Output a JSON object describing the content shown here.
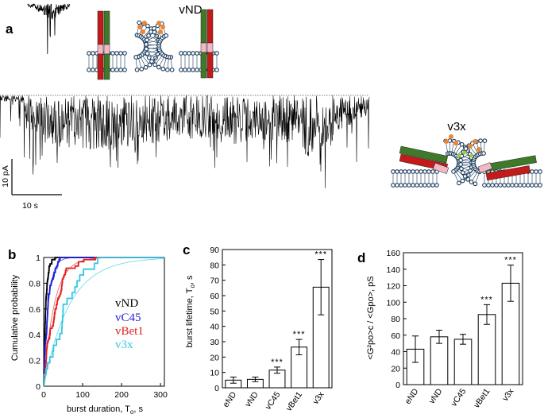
{
  "panels": {
    "a": {
      "label": "a",
      "construct_top": "vND",
      "construct_right": "v3x",
      "scale_current": "10 pA",
      "scale_time": "10 s"
    },
    "b": {
      "label": "b",
      "legend": [
        {
          "name": "vND",
          "color": "#000000"
        },
        {
          "name": "vC45",
          "color": "#1f1fd8"
        },
        {
          "name": "vBet1",
          "color": "#e02020"
        },
        {
          "name": "v3x",
          "color": "#33c8e0"
        }
      ]
    },
    "c": {
      "label": "c"
    },
    "d": {
      "label": "d"
    }
  },
  "chart_data": [
    {
      "id": "b",
      "type": "line",
      "title": "",
      "xlabel": "burst duration, T",
      "xlabel_sub": "o",
      "xlabel_suffix": ", s",
      "ylabel": "Cumulative probability",
      "xlim": [
        0,
        310
      ],
      "ylim": [
        0,
        1
      ],
      "xticks": [
        0,
        100,
        200,
        300
      ],
      "yticks": [
        0,
        0.2,
        0.4,
        0.6,
        0.8,
        1
      ],
      "series": [
        {
          "name": "vND",
          "color": "#000000",
          "tau": 6,
          "max_x": 70
        },
        {
          "name": "vC45",
          "color": "#1f1fd8",
          "tau": 12,
          "max_x": 150
        },
        {
          "name": "vBet1",
          "color": "#e02020",
          "tau": 27,
          "max_x": 300
        },
        {
          "name": "v3x",
          "color": "#33c8e0",
          "tau": 66,
          "max_x": 310
        }
      ]
    },
    {
      "id": "c",
      "type": "bar",
      "ylabel": "burst lifetime, T",
      "ylabel_sub": "o",
      "ylabel_suffix": ", s",
      "categories": [
        "eND",
        "vND",
        "vC45",
        "vBet1",
        "v3x"
      ],
      "values": [
        5,
        5.5,
        11.5,
        26.5,
        65.5
      ],
      "errors": [
        2,
        1.5,
        2,
        5,
        18
      ],
      "significance": [
        "",
        "",
        "***",
        "***",
        "***"
      ],
      "ylim": [
        0,
        90
      ],
      "yticks": [
        0,
        10,
        20,
        30,
        40,
        50,
        60,
        70,
        80,
        90
      ]
    },
    {
      "id": "d",
      "type": "bar",
      "ylabel": "<G²po>c / <Gpo>, pS",
      "categories": [
        "eND",
        "vND",
        "vC45",
        "vBet1",
        "v3x"
      ],
      "values": [
        43,
        58,
        55,
        85,
        123
      ],
      "errors": [
        16,
        8,
        6,
        12,
        22
      ],
      "significance": [
        "",
        "",
        "",
        "***",
        "***"
      ],
      "ylim": [
        0,
        160
      ],
      "yticks": [
        0,
        20,
        40,
        60,
        80,
        100,
        120,
        140,
        160
      ]
    }
  ]
}
